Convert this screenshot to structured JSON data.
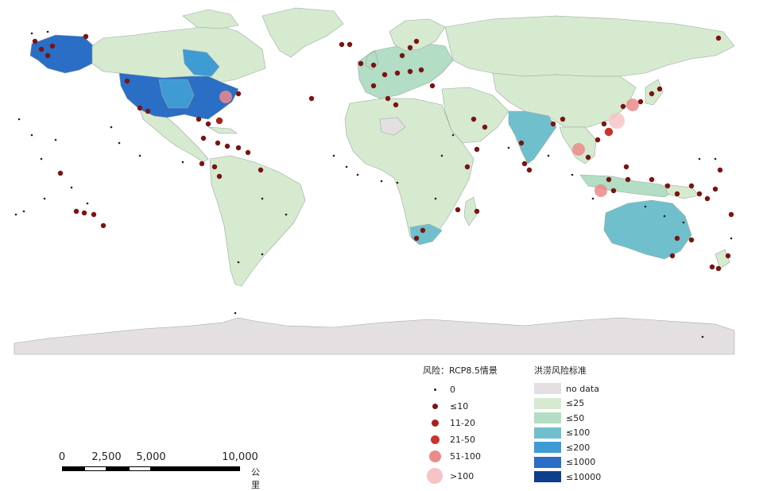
{
  "risk_legend": {
    "title": "风险：RCP8.5情景",
    "items": [
      {
        "label": "0",
        "color": "#222222"
      },
      {
        "label": "≤10",
        "color": "#7a1410"
      },
      {
        "label": "11-20",
        "color": "#a72318"
      },
      {
        "label": "21-50",
        "color": "#c8362a"
      },
      {
        "label": "51-100",
        "color": "#ec8a8a"
      },
      {
        "label": ">100",
        "color": "#f6c4c6"
      }
    ]
  },
  "standard_legend": {
    "title": "洪涝风险标准",
    "items": [
      {
        "label": "no data",
        "color": "#e4e0e2"
      },
      {
        "label": "≤25",
        "color": "#d6ead0"
      },
      {
        "label": "≤50",
        "color": "#b3ddc5"
      },
      {
        "label": "≤100",
        "color": "#6fc0cc"
      },
      {
        "label": "≤200",
        "color": "#3f9bd4"
      },
      {
        "label": "≤1000",
        "color": "#2a6ec6"
      },
      {
        "label": "≤10000",
        "color": "#0c3e8c"
      }
    ]
  },
  "scalebar": {
    "labels": [
      "0",
      "2,500",
      "5,000",
      "10,000"
    ],
    "unit": "公里"
  },
  "map_colors": {
    "ocean": "#ffffff",
    "antarctica": "#e4e0e2",
    "no_data": "#e4e0e2",
    "c25": "#d6ead0",
    "c50": "#b3ddc5",
    "c100": "#6fc0cc",
    "c200": "#3f9bd4",
    "c1000": "#2a6ec6",
    "c10000": "#0c3e8c",
    "border": "#9aa8a0"
  }
}
